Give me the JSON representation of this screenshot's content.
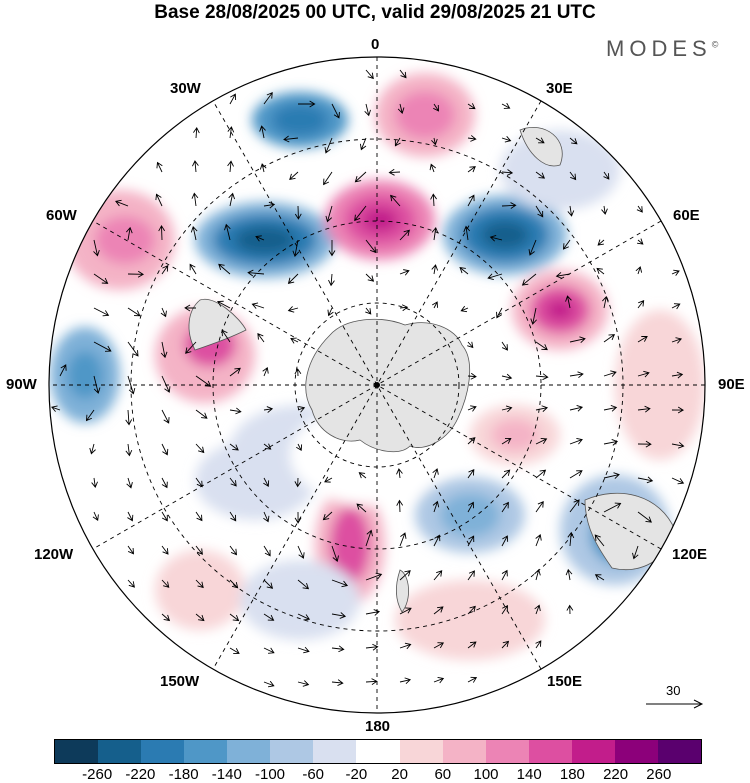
{
  "title": "Base 28/08/2025 00 UTC, valid 29/08/2025 21 UTC",
  "logo": "MODES",
  "logo_mark": "©",
  "lon_labels": {
    "n0": "0",
    "e30": "30E",
    "e60": "60E",
    "e90": "90E",
    "e120": "120E",
    "e150": "150E",
    "s180": "180",
    "w150": "150W",
    "w120": "120W",
    "w90": "90W",
    "w60": "60W",
    "w30": "30W"
  },
  "reference_vector": {
    "label": "30"
  },
  "colorbar": {
    "colors": [
      "#0d3a5a",
      "#155f8c",
      "#2b7bb2",
      "#4f97c7",
      "#7fb1d8",
      "#aec8e4",
      "#d9e0f0",
      "#ffffff",
      "#f8d6d8",
      "#f4b3c6",
      "#ec84b5",
      "#dd4fa1",
      "#c21d8b",
      "#8c007a",
      "#5a006e"
    ],
    "ticks": [
      "-260",
      "-220",
      "-180",
      "-140",
      "-100",
      "-60",
      "-20",
      "20",
      "60",
      "100",
      "140",
      "180",
      "220",
      "260"
    ]
  },
  "colors": {
    "land": "#e4e4e4",
    "background": "#ffffff"
  }
}
